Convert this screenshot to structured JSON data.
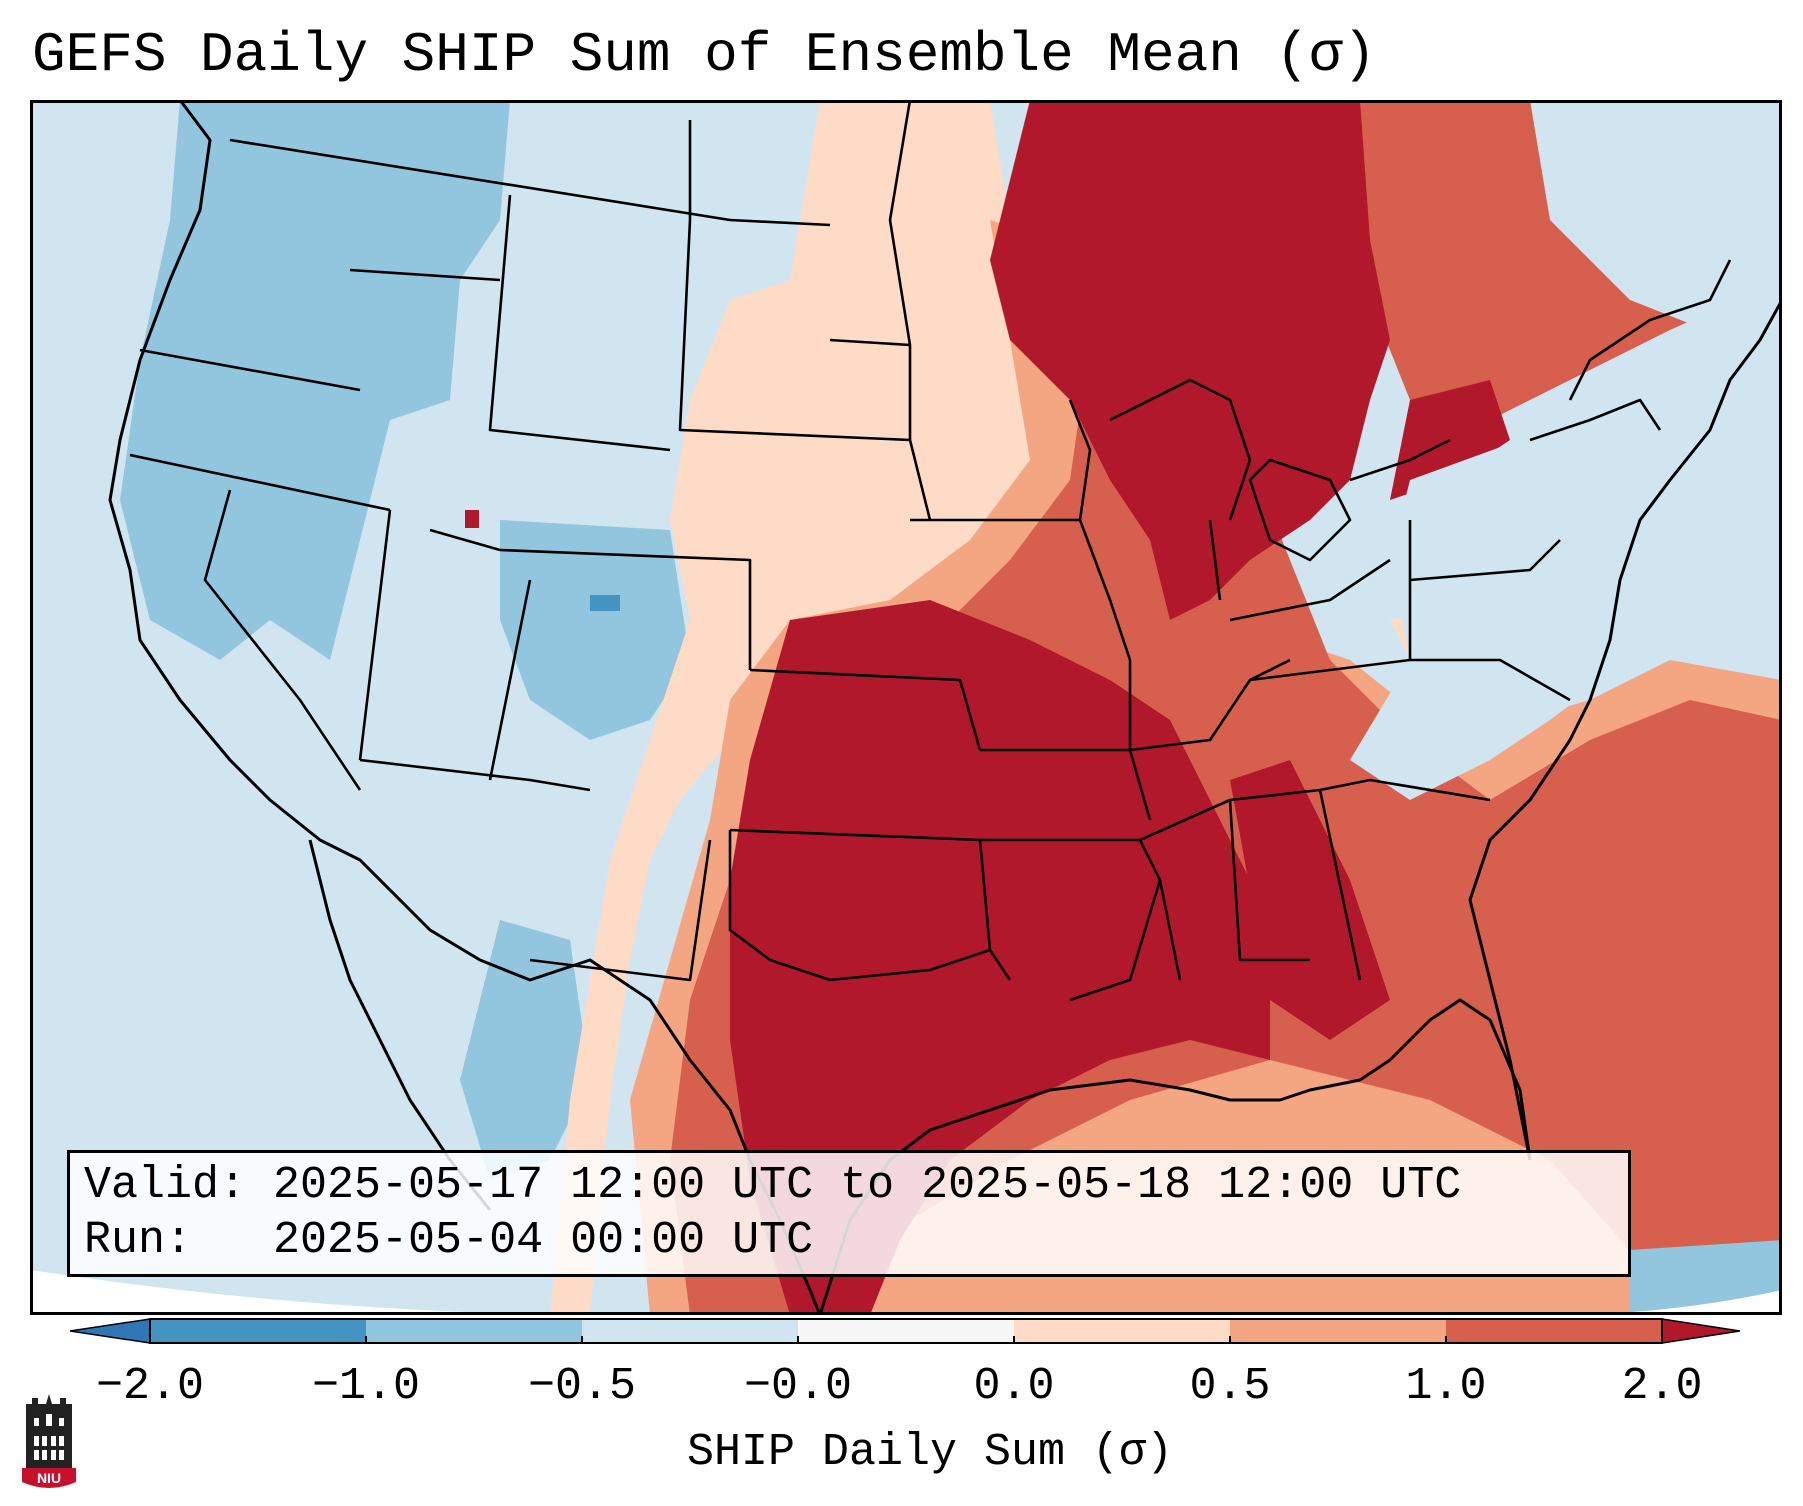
{
  "title": "GEFS Daily SHIP Sum of Ensemble Mean (σ)",
  "info": {
    "valid_line": "Valid: 2025-05-17 12:00 UTC to 2025-05-18 12:00 UTC",
    "run_line": "Run:   2025-05-04 00:00 UTC"
  },
  "colorbar": {
    "label": "SHIP Daily Sum (σ)",
    "ticks": [
      "−2.0",
      "−1.0",
      "−0.5",
      "−0.0",
      "0.0",
      "0.5",
      "1.0",
      "2.0"
    ],
    "bins": [
      {
        "range": "< -2.0",
        "color": "#2f76b5"
      },
      {
        "range": "-2.0 to -1.0",
        "color": "#4393c3"
      },
      {
        "range": "-1.0 to -0.5",
        "color": "#92c5de"
      },
      {
        "range": "-0.5 to -0.0",
        "color": "#d1e5f0"
      },
      {
        "range": "-0.0 to 0.0",
        "color": "#f7f7f7"
      },
      {
        "range": "0.0 to 0.5",
        "color": "#fddbc7"
      },
      {
        "range": "0.5 to 1.0",
        "color": "#f4a582"
      },
      {
        "range": "1.0 to 2.0",
        "color": "#d6604d"
      },
      {
        "range": "> 2.0",
        "color": "#b2182b"
      }
    ]
  },
  "logo": {
    "text": "NIU"
  },
  "map": {
    "projection": "Lambert conformal, CONUS",
    "regions": [
      {
        "area": "Pacific Northwest / Northern Rockies",
        "category": "-1.0 to -0.5"
      },
      {
        "area": "Great Basin / Four Corners",
        "category": "-0.5 to -0.0"
      },
      {
        "area": "Northern Plains",
        "category": "0.0 to 0.5"
      },
      {
        "area": "Upper Midwest / Great Lakes / Ontario",
        "category": "> 2.0"
      },
      {
        "area": "Southern Plains / Texas / Lower Mississippi Valley",
        "category": "> 2.0"
      },
      {
        "area": "Ohio Valley / Southeast",
        "category": "1.0 to 2.0"
      },
      {
        "area": "Mid-Atlantic / New England",
        "category": "-0.5 to -0.0"
      },
      {
        "area": "Gulf of Mexico",
        "category": "0.5 to 1.0"
      },
      {
        "area": "Western Atlantic",
        "category": "1.0 to 2.0"
      }
    ]
  }
}
